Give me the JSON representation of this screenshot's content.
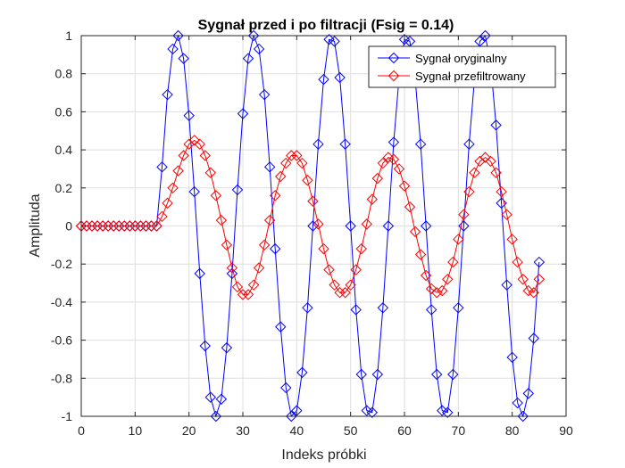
{
  "chart_data": {
    "type": "line",
    "title": "Sygnał przed i po filtracji (Fsig = 0.14)",
    "xlabel": "Indeks próbki",
    "ylabel": "Amplituda",
    "xlim": [
      0,
      90
    ],
    "ylim": [
      -1,
      1
    ],
    "xticks": [
      0,
      10,
      20,
      30,
      40,
      50,
      60,
      70,
      80,
      90
    ],
    "yticks": [
      -1,
      -0.8,
      -0.6,
      -0.4,
      -0.2,
      0,
      0.2,
      0.4,
      0.6,
      0.8,
      1
    ],
    "xtick_labels": [
      "0",
      "10",
      "20",
      "30",
      "40",
      "50",
      "60",
      "70",
      "80",
      "90"
    ],
    "ytick_labels": [
      "-1",
      "-0.8",
      "-0.6",
      "-0.4",
      "-0.2",
      "0",
      "0.2",
      "0.4",
      "0.6",
      "0.8",
      "1"
    ],
    "grid": true,
    "legend_position": "top-right",
    "marker": "diamond",
    "series": [
      {
        "name": "Sygnał oryginalny",
        "color": "#0000ff",
        "x": [
          0,
          1,
          2,
          3,
          4,
          5,
          6,
          7,
          8,
          9,
          10,
          11,
          12,
          13,
          14,
          15,
          16,
          17,
          18,
          19,
          20,
          21,
          22,
          23,
          24,
          25,
          26,
          27,
          28,
          29,
          30,
          31,
          32,
          33,
          34,
          35,
          36,
          37,
          38,
          39,
          40,
          41,
          42,
          43,
          44,
          45,
          46,
          47,
          48,
          49,
          50,
          51,
          52,
          53,
          54,
          55,
          56,
          57,
          58,
          59,
          60,
          61,
          62,
          63,
          64,
          65,
          66,
          67,
          68,
          69,
          70,
          71,
          72,
          73,
          74,
          75,
          76,
          77,
          78,
          79,
          80,
          81,
          82,
          83,
          84,
          85
        ],
        "y": [
          0,
          0,
          0,
          0,
          0,
          0,
          0,
          0,
          0,
          0,
          0,
          0,
          0,
          0,
          0,
          0.31,
          0.69,
          0.93,
          1.0,
          0.88,
          0.58,
          0.18,
          -0.25,
          -0.63,
          -0.9,
          -1.0,
          -0.91,
          -0.64,
          -0.25,
          0.19,
          0.59,
          0.88,
          1.0,
          0.93,
          0.69,
          0.31,
          -0.12,
          -0.53,
          -0.85,
          -1.0,
          -0.97,
          -0.77,
          -0.43,
          0.0,
          0.43,
          0.77,
          0.98,
          0.97,
          0.78,
          0.43,
          0.0,
          -0.44,
          -0.78,
          -0.97,
          -0.98,
          -0.78,
          -0.43,
          0.0,
          0.44,
          0.78,
          0.98,
          0.97,
          0.77,
          0.43,
          0.0,
          -0.44,
          -0.78,
          -0.97,
          -0.98,
          -0.78,
          -0.43,
          0.0,
          0.43,
          0.77,
          0.97,
          1.0,
          0.85,
          0.53,
          0.12,
          -0.31,
          -0.69,
          -0.93,
          -1.0,
          -0.88,
          -0.59,
          -0.19
        ]
      },
      {
        "name": "Sygnał przefiltrowany",
        "color": "#ff0000",
        "x": [
          0,
          1,
          2,
          3,
          4,
          5,
          6,
          7,
          8,
          9,
          10,
          11,
          12,
          13,
          14,
          15,
          16,
          17,
          18,
          19,
          20,
          21,
          22,
          23,
          24,
          25,
          26,
          27,
          28,
          29,
          30,
          31,
          32,
          33,
          34,
          35,
          36,
          37,
          38,
          39,
          40,
          41,
          42,
          43,
          44,
          45,
          46,
          47,
          48,
          49,
          50,
          51,
          52,
          53,
          54,
          55,
          56,
          57,
          58,
          59,
          60,
          61,
          62,
          63,
          64,
          65,
          66,
          67,
          68,
          69,
          70,
          71,
          72,
          73,
          74,
          75,
          76,
          77,
          78,
          79,
          80,
          81,
          82,
          83,
          84,
          85
        ],
        "y": [
          0,
          0,
          0,
          0,
          0,
          0,
          0,
          0,
          0,
          0,
          0,
          0,
          0,
          0,
          0,
          0.05,
          0.12,
          0.2,
          0.29,
          0.37,
          0.43,
          0.45,
          0.43,
          0.37,
          0.28,
          0.16,
          0.03,
          -0.1,
          -0.22,
          -0.32,
          -0.36,
          -0.36,
          -0.31,
          -0.22,
          -0.1,
          0.03,
          0.16,
          0.26,
          0.33,
          0.37,
          0.37,
          0.33,
          0.24,
          0.13,
          0.01,
          -0.12,
          -0.23,
          -0.31,
          -0.35,
          -0.35,
          -0.31,
          -0.23,
          -0.12,
          0.01,
          0.14,
          0.25,
          0.33,
          0.36,
          0.35,
          0.3,
          0.21,
          0.1,
          -0.03,
          -0.15,
          -0.26,
          -0.33,
          -0.35,
          -0.34,
          -0.28,
          -0.19,
          -0.07,
          0.06,
          0.18,
          0.28,
          0.34,
          0.36,
          0.34,
          0.28,
          0.18,
          0.06,
          -0.07,
          -0.19,
          -0.28,
          -0.34,
          -0.35,
          -0.28
        ]
      }
    ]
  }
}
